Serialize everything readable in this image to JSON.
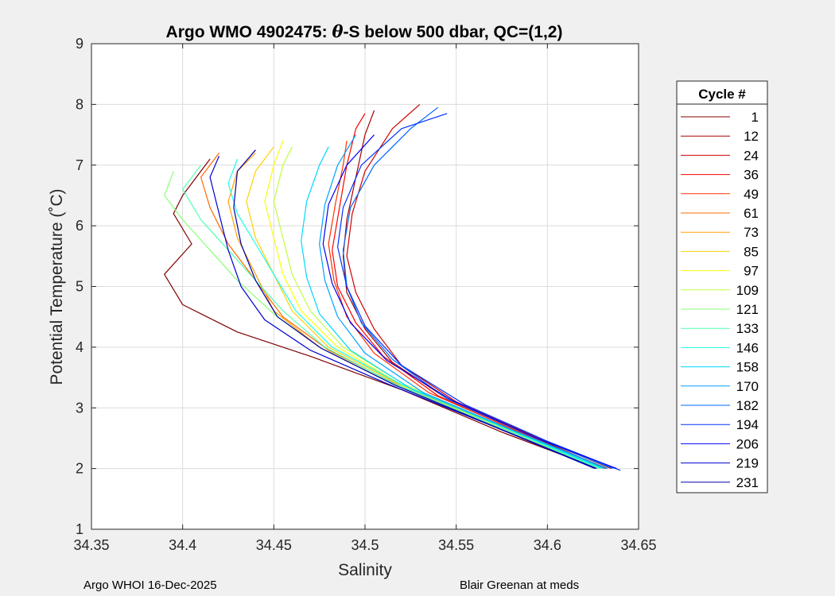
{
  "chart_data": {
    "type": "line",
    "title_prefix": "Argo WMO 4902475: ",
    "title_theta": "θ",
    "title_suffix": "-S below 500 dbar,  QC=(1,2)",
    "xlabel": "Salinity",
    "ylabel": "Potential Temperature (˚C)",
    "xlim": [
      34.35,
      34.65
    ],
    "ylim": [
      1,
      9
    ],
    "xticks": [
      "34.35",
      "34.4",
      "34.45",
      "34.5",
      "34.55",
      "34.6",
      "34.65"
    ],
    "yticks": [
      "1",
      "2",
      "3",
      "4",
      "5",
      "6",
      "7",
      "8",
      "9"
    ],
    "grid": true,
    "legend_title": "Cycle #",
    "legend_position": "right-outside",
    "series": [
      {
        "name": "1",
        "color": "#800000",
        "values": [
          [
            34.628,
            2.0
          ],
          [
            34.575,
            2.6
          ],
          [
            34.52,
            3.3
          ],
          [
            34.47,
            3.85
          ],
          [
            34.43,
            4.25
          ],
          [
            34.4,
            4.7
          ],
          [
            34.39,
            5.2
          ],
          [
            34.405,
            5.7
          ],
          [
            34.395,
            6.2
          ],
          [
            34.4,
            6.5
          ],
          [
            34.41,
            6.9
          ],
          [
            34.415,
            7.1
          ]
        ]
      },
      {
        "name": "12",
        "color": "#a80000",
        "values": [
          [
            34.632,
            2.0
          ],
          [
            34.59,
            2.55
          ],
          [
            34.545,
            3.15
          ],
          [
            34.515,
            3.75
          ],
          [
            34.5,
            4.3
          ],
          [
            34.49,
            4.9
          ],
          [
            34.488,
            5.5
          ],
          [
            34.49,
            6.1
          ],
          [
            34.495,
            6.8
          ],
          [
            34.5,
            7.5
          ],
          [
            34.505,
            7.9
          ]
        ]
      },
      {
        "name": "24",
        "color": "#d00000",
        "values": [
          [
            34.635,
            2.0
          ],
          [
            34.595,
            2.5
          ],
          [
            34.55,
            3.1
          ],
          [
            34.52,
            3.7
          ],
          [
            34.505,
            4.3
          ],
          [
            34.495,
            4.9
          ],
          [
            34.49,
            5.5
          ],
          [
            34.493,
            6.2
          ],
          [
            34.5,
            6.9
          ],
          [
            34.515,
            7.6
          ],
          [
            34.53,
            8.0
          ]
        ]
      },
      {
        "name": "36",
        "color": "#f80000",
        "values": [
          [
            34.633,
            2.0
          ],
          [
            34.588,
            2.55
          ],
          [
            34.54,
            3.2
          ],
          [
            34.51,
            3.85
          ],
          [
            34.495,
            4.4
          ],
          [
            34.485,
            5.0
          ],
          [
            34.482,
            5.6
          ],
          [
            34.486,
            6.3
          ],
          [
            34.49,
            7.0
          ],
          [
            34.495,
            7.6
          ],
          [
            34.5,
            7.85
          ]
        ]
      },
      {
        "name": "49",
        "color": "#ff3000",
        "values": [
          [
            34.63,
            2.0
          ],
          [
            34.585,
            2.6
          ],
          [
            34.535,
            3.25
          ],
          [
            34.505,
            3.9
          ],
          [
            34.49,
            4.5
          ],
          [
            34.483,
            5.1
          ],
          [
            34.48,
            5.7
          ],
          [
            34.484,
            6.4
          ],
          [
            34.488,
            7.0
          ],
          [
            34.49,
            7.4
          ]
        ]
      },
      {
        "name": "61",
        "color": "#ff6800",
        "values": [
          [
            34.628,
            2.0
          ],
          [
            34.57,
            2.7
          ],
          [
            34.52,
            3.35
          ],
          [
            34.48,
            3.95
          ],
          [
            34.455,
            4.5
          ],
          [
            34.44,
            5.1
          ],
          [
            34.425,
            5.7
          ],
          [
            34.415,
            6.3
          ],
          [
            34.41,
            6.8
          ],
          [
            34.42,
            7.2
          ]
        ]
      },
      {
        "name": "73",
        "color": "#ffa000",
        "values": [
          [
            34.627,
            2.0
          ],
          [
            34.57,
            2.7
          ],
          [
            34.515,
            3.4
          ],
          [
            34.475,
            4.0
          ],
          [
            34.45,
            4.6
          ],
          [
            34.44,
            5.2
          ],
          [
            34.43,
            5.8
          ],
          [
            34.425,
            6.4
          ],
          [
            34.43,
            6.9
          ],
          [
            34.44,
            7.2
          ]
        ]
      },
      {
        "name": "85",
        "color": "#ffd000",
        "values": [
          [
            34.629,
            2.0
          ],
          [
            34.572,
            2.7
          ],
          [
            34.518,
            3.4
          ],
          [
            34.48,
            4.0
          ],
          [
            34.46,
            4.6
          ],
          [
            34.45,
            5.2
          ],
          [
            34.44,
            5.8
          ],
          [
            34.435,
            6.4
          ],
          [
            34.44,
            6.9
          ],
          [
            34.45,
            7.3
          ]
        ]
      },
      {
        "name": "97",
        "color": "#f8ff08",
        "values": [
          [
            34.63,
            2.0
          ],
          [
            34.575,
            2.68
          ],
          [
            34.52,
            3.38
          ],
          [
            34.485,
            4.0
          ],
          [
            34.465,
            4.6
          ],
          [
            34.455,
            5.2
          ],
          [
            34.45,
            5.8
          ],
          [
            34.445,
            6.4
          ],
          [
            34.45,
            7.0
          ],
          [
            34.455,
            7.4
          ]
        ]
      },
      {
        "name": "109",
        "color": "#c0ff40",
        "values": [
          [
            34.631,
            2.0
          ],
          [
            34.576,
            2.68
          ],
          [
            34.522,
            3.38
          ],
          [
            34.488,
            4.0
          ],
          [
            34.47,
            4.6
          ],
          [
            34.46,
            5.2
          ],
          [
            34.455,
            5.8
          ],
          [
            34.45,
            6.4
          ],
          [
            34.455,
            7.0
          ],
          [
            34.46,
            7.3
          ]
        ]
      },
      {
        "name": "121",
        "color": "#88ff78",
        "values": [
          [
            34.628,
            2.0
          ],
          [
            34.57,
            2.7
          ],
          [
            34.515,
            3.4
          ],
          [
            34.475,
            4.0
          ],
          [
            34.45,
            4.55
          ],
          [
            34.43,
            5.1
          ],
          [
            34.415,
            5.6
          ],
          [
            34.4,
            6.1
          ],
          [
            34.39,
            6.5
          ],
          [
            34.395,
            6.9
          ]
        ]
      },
      {
        "name": "133",
        "color": "#50ffb0",
        "values": [
          [
            34.629,
            2.0
          ],
          [
            34.572,
            2.7
          ],
          [
            34.516,
            3.4
          ],
          [
            34.478,
            4.0
          ],
          [
            34.455,
            4.6
          ],
          [
            34.44,
            5.1
          ],
          [
            34.425,
            5.6
          ],
          [
            34.41,
            6.1
          ],
          [
            34.4,
            6.6
          ],
          [
            34.41,
            7.0
          ]
        ]
      },
      {
        "name": "146",
        "color": "#18ffe8",
        "values": [
          [
            34.63,
            2.0
          ],
          [
            34.574,
            2.7
          ],
          [
            34.519,
            3.4
          ],
          [
            34.482,
            4.0
          ],
          [
            34.462,
            4.6
          ],
          [
            34.45,
            5.2
          ],
          [
            34.44,
            5.7
          ],
          [
            34.43,
            6.2
          ],
          [
            34.425,
            6.7
          ],
          [
            34.43,
            7.1
          ]
        ]
      },
      {
        "name": "158",
        "color": "#00d8ff",
        "values": [
          [
            34.631,
            2.0
          ],
          [
            34.578,
            2.66
          ],
          [
            34.526,
            3.3
          ],
          [
            34.492,
            3.95
          ],
          [
            34.475,
            4.55
          ],
          [
            34.468,
            5.15
          ],
          [
            34.465,
            5.75
          ],
          [
            34.468,
            6.4
          ],
          [
            34.475,
            7.0
          ],
          [
            34.48,
            7.3
          ]
        ]
      },
      {
        "name": "170",
        "color": "#00a0ff",
        "values": [
          [
            34.633,
            2.0
          ],
          [
            34.582,
            2.62
          ],
          [
            34.532,
            3.25
          ],
          [
            34.5,
            3.9
          ],
          [
            34.485,
            4.5
          ],
          [
            34.478,
            5.1
          ],
          [
            34.475,
            5.7
          ],
          [
            34.478,
            6.35
          ],
          [
            34.485,
            7.0
          ],
          [
            34.495,
            7.5
          ]
        ]
      },
      {
        "name": "182",
        "color": "#0068ff",
        "values": [
          [
            34.636,
            2.0
          ],
          [
            34.59,
            2.55
          ],
          [
            34.545,
            3.15
          ],
          [
            34.515,
            3.8
          ],
          [
            34.498,
            4.4
          ],
          [
            34.49,
            5.0
          ],
          [
            34.488,
            5.6
          ],
          [
            34.492,
            6.3
          ],
          [
            34.505,
            7.0
          ],
          [
            34.525,
            7.6
          ],
          [
            34.54,
            7.95
          ]
        ]
      },
      {
        "name": "194",
        "color": "#0030ff",
        "values": [
          [
            34.64,
            1.97
          ],
          [
            34.6,
            2.45
          ],
          [
            34.555,
            3.05
          ],
          [
            34.52,
            3.7
          ],
          [
            34.5,
            4.35
          ],
          [
            34.49,
            5.0
          ],
          [
            34.485,
            5.65
          ],
          [
            34.488,
            6.3
          ],
          [
            34.498,
            7.0
          ],
          [
            34.52,
            7.6
          ],
          [
            34.545,
            7.85
          ]
        ]
      },
      {
        "name": "206",
        "color": "#0000f8",
        "values": [
          [
            34.638,
            2.0
          ],
          [
            34.594,
            2.5
          ],
          [
            34.548,
            3.12
          ],
          [
            34.512,
            3.78
          ],
          [
            34.492,
            4.4
          ],
          [
            34.482,
            5.05
          ],
          [
            34.477,
            5.7
          ],
          [
            34.48,
            6.35
          ],
          [
            34.49,
            7.0
          ],
          [
            34.505,
            7.5
          ]
        ]
      },
      {
        "name": "219",
        "color": "#0000d0",
        "values": [
          [
            34.626,
            2.0
          ],
          [
            34.57,
            2.7
          ],
          [
            34.512,
            3.4
          ],
          [
            34.47,
            3.95
          ],
          [
            34.445,
            4.45
          ],
          [
            34.432,
            5.0
          ],
          [
            34.425,
            5.6
          ],
          [
            34.42,
            6.2
          ],
          [
            34.415,
            6.8
          ],
          [
            34.42,
            7.15
          ]
        ]
      },
      {
        "name": "231",
        "color": "#0000a8",
        "values": [
          [
            34.627,
            2.0
          ],
          [
            34.572,
            2.68
          ],
          [
            34.516,
            3.38
          ],
          [
            34.476,
            3.98
          ],
          [
            34.452,
            4.5
          ],
          [
            34.44,
            5.1
          ],
          [
            34.432,
            5.7
          ],
          [
            34.428,
            6.3
          ],
          [
            34.43,
            6.9
          ],
          [
            34.44,
            7.25
          ]
        ]
      }
    ]
  },
  "footer": {
    "left": "Argo WHOI 16-Dec-2025",
    "right": "Blair Greenan at meds"
  }
}
